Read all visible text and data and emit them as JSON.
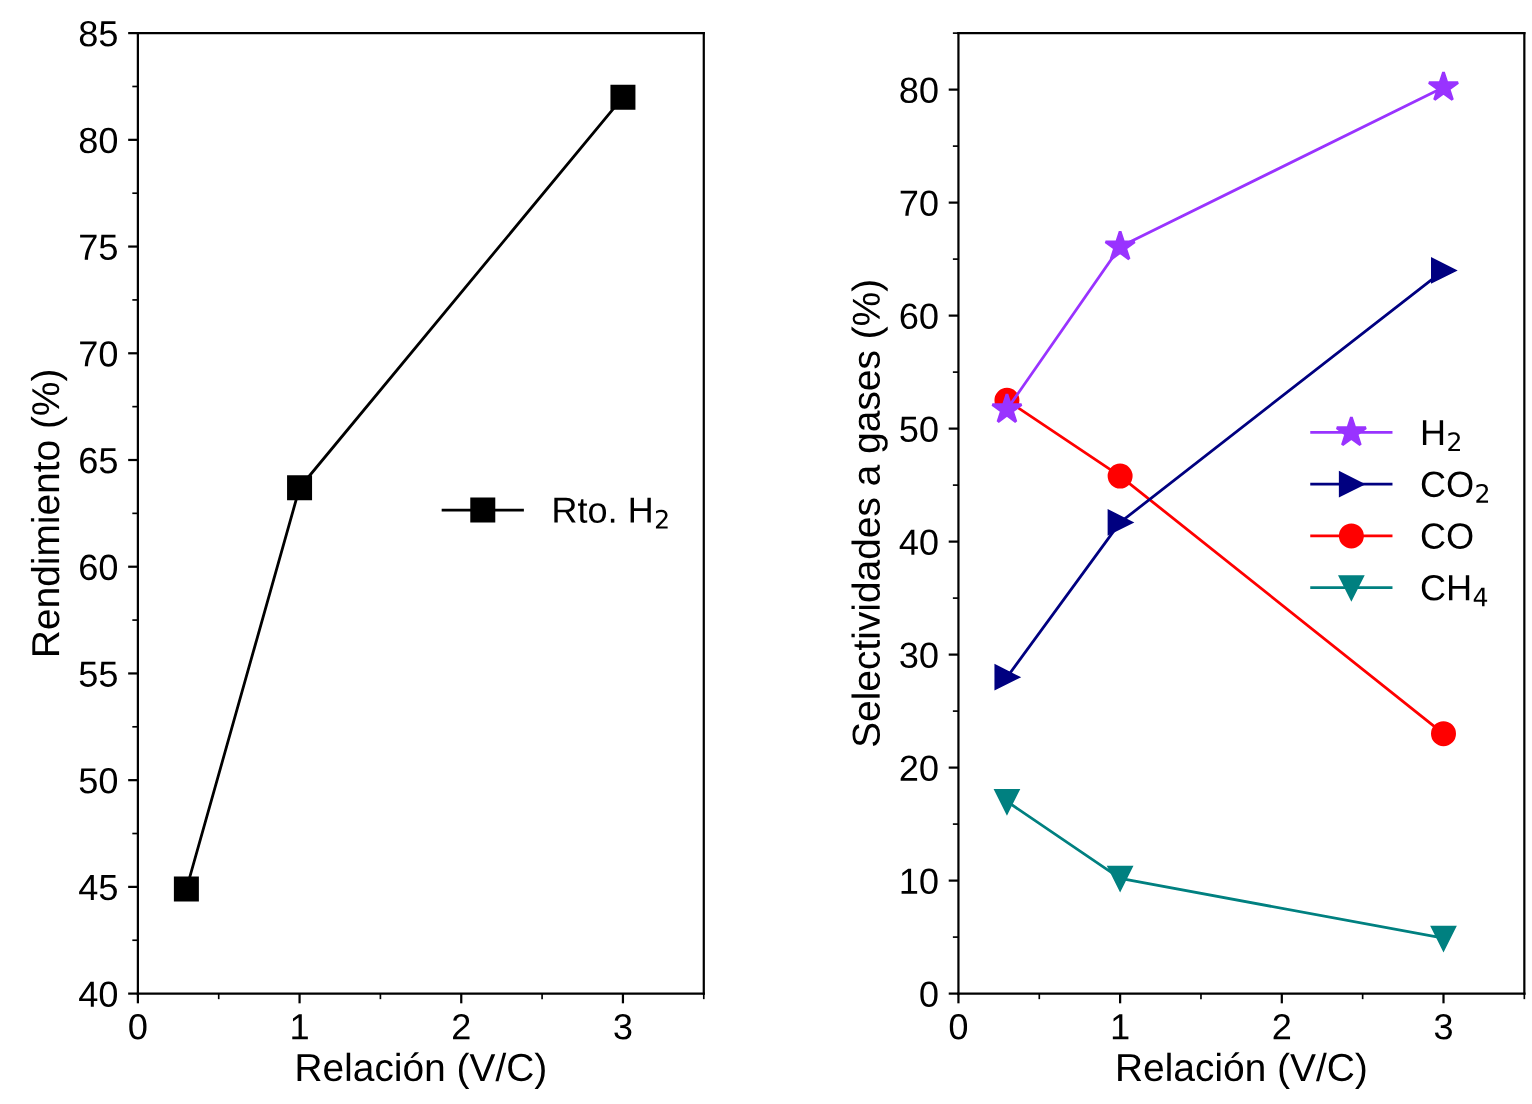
{
  "chart_data": [
    {
      "type": "line",
      "xlabel": "Relación (V/C)",
      "ylabel": "Rendimiento (%)",
      "x": [
        0.3,
        1,
        3
      ],
      "xlim": [
        0,
        3.5
      ],
      "xticks": [
        0,
        1,
        2,
        3
      ],
      "ylim": [
        40,
        85
      ],
      "yticks": [
        40,
        45,
        50,
        55,
        60,
        65,
        70,
        75,
        80,
        85
      ],
      "legend": "right",
      "grid": false,
      "series": [
        {
          "name": "Rto. H$_{2}$",
          "color": "#000000",
          "marker": "square",
          "values": [
            44.9,
            63.7,
            82.0
          ]
        }
      ]
    },
    {
      "type": "line",
      "xlabel": "Relación (V/C)",
      "ylabel": "Selectividades a gases (%)",
      "x": [
        0.3,
        1,
        3
      ],
      "xlim": [
        0,
        3.5
      ],
      "xticks": [
        0,
        1,
        2,
        3
      ],
      "ylim": [
        0,
        85
      ],
      "yticks": [
        0,
        10,
        20,
        30,
        40,
        50,
        60,
        70,
        80
      ],
      "legend": "right",
      "grid": false,
      "series": [
        {
          "name": "H$_{2}$",
          "color": "#9933ff",
          "marker": "star",
          "values": [
            51.7,
            66.1,
            80.2
          ]
        },
        {
          "name": "CO$_{2}$",
          "color": "#000080",
          "marker": "triangle-right",
          "values": [
            28.0,
            41.7,
            64.0
          ]
        },
        {
          "name": "CO",
          "color": "#ff0000",
          "marker": "circle",
          "values": [
            52.5,
            45.8,
            23.0
          ]
        },
        {
          "name": "CH$_{4}$",
          "color": "#008080",
          "marker": "triangle-down",
          "values": [
            17.0,
            10.2,
            4.9
          ]
        }
      ]
    }
  ]
}
